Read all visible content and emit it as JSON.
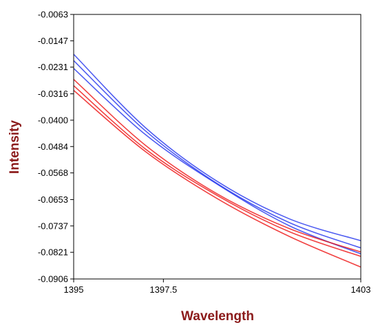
{
  "chart_data": {
    "type": "line",
    "title": "",
    "xlabel": "Wavelength",
    "ylabel": "Intensity",
    "xlim": [
      1395,
      1403
    ],
    "ylim": [
      -0.0906,
      -0.0063
    ],
    "x_ticks": [
      1395,
      1397.5,
      1403
    ],
    "x_tick_labels": [
      "1395",
      "1397.5",
      "1403"
    ],
    "y_ticks": [
      -0.0063,
      -0.0147,
      -0.0231,
      -0.0316,
      -0.04,
      -0.0484,
      -0.0568,
      -0.0653,
      -0.0737,
      -0.0821,
      -0.0906
    ],
    "y_tick_labels": [
      "-0.0063",
      "-0.0147",
      "-0.0231",
      "-0.0316",
      "-0.0400",
      "-0.0484",
      "-0.0568",
      "-0.0653",
      "-0.0737",
      "-0.0821",
      "-0.0906"
    ],
    "grid": false,
    "legend": "none",
    "x": [
      1395,
      1397,
      1399,
      1401,
      1403
    ],
    "series": [
      {
        "color": "#2233ee",
        "values": [
          -0.019,
          -0.0424,
          -0.0595,
          -0.0714,
          -0.0784
        ]
      },
      {
        "color": "#2233ee",
        "values": [
          -0.021,
          -0.0434,
          -0.0602,
          -0.0726,
          -0.0807
        ]
      },
      {
        "color": "#2233ee",
        "values": [
          -0.0235,
          -0.0446,
          -0.0604,
          -0.0736,
          -0.0826
        ]
      },
      {
        "color": "#ee1111",
        "values": [
          -0.027,
          -0.048,
          -0.0635,
          -0.0745,
          -0.082
        ]
      },
      {
        "color": "#ee1111",
        "values": [
          -0.029,
          -0.0492,
          -0.064,
          -0.0755,
          -0.0834
        ]
      },
      {
        "color": "#ee1111",
        "values": [
          -0.0305,
          -0.05,
          -0.065,
          -0.077,
          -0.0868
        ]
      }
    ]
  }
}
